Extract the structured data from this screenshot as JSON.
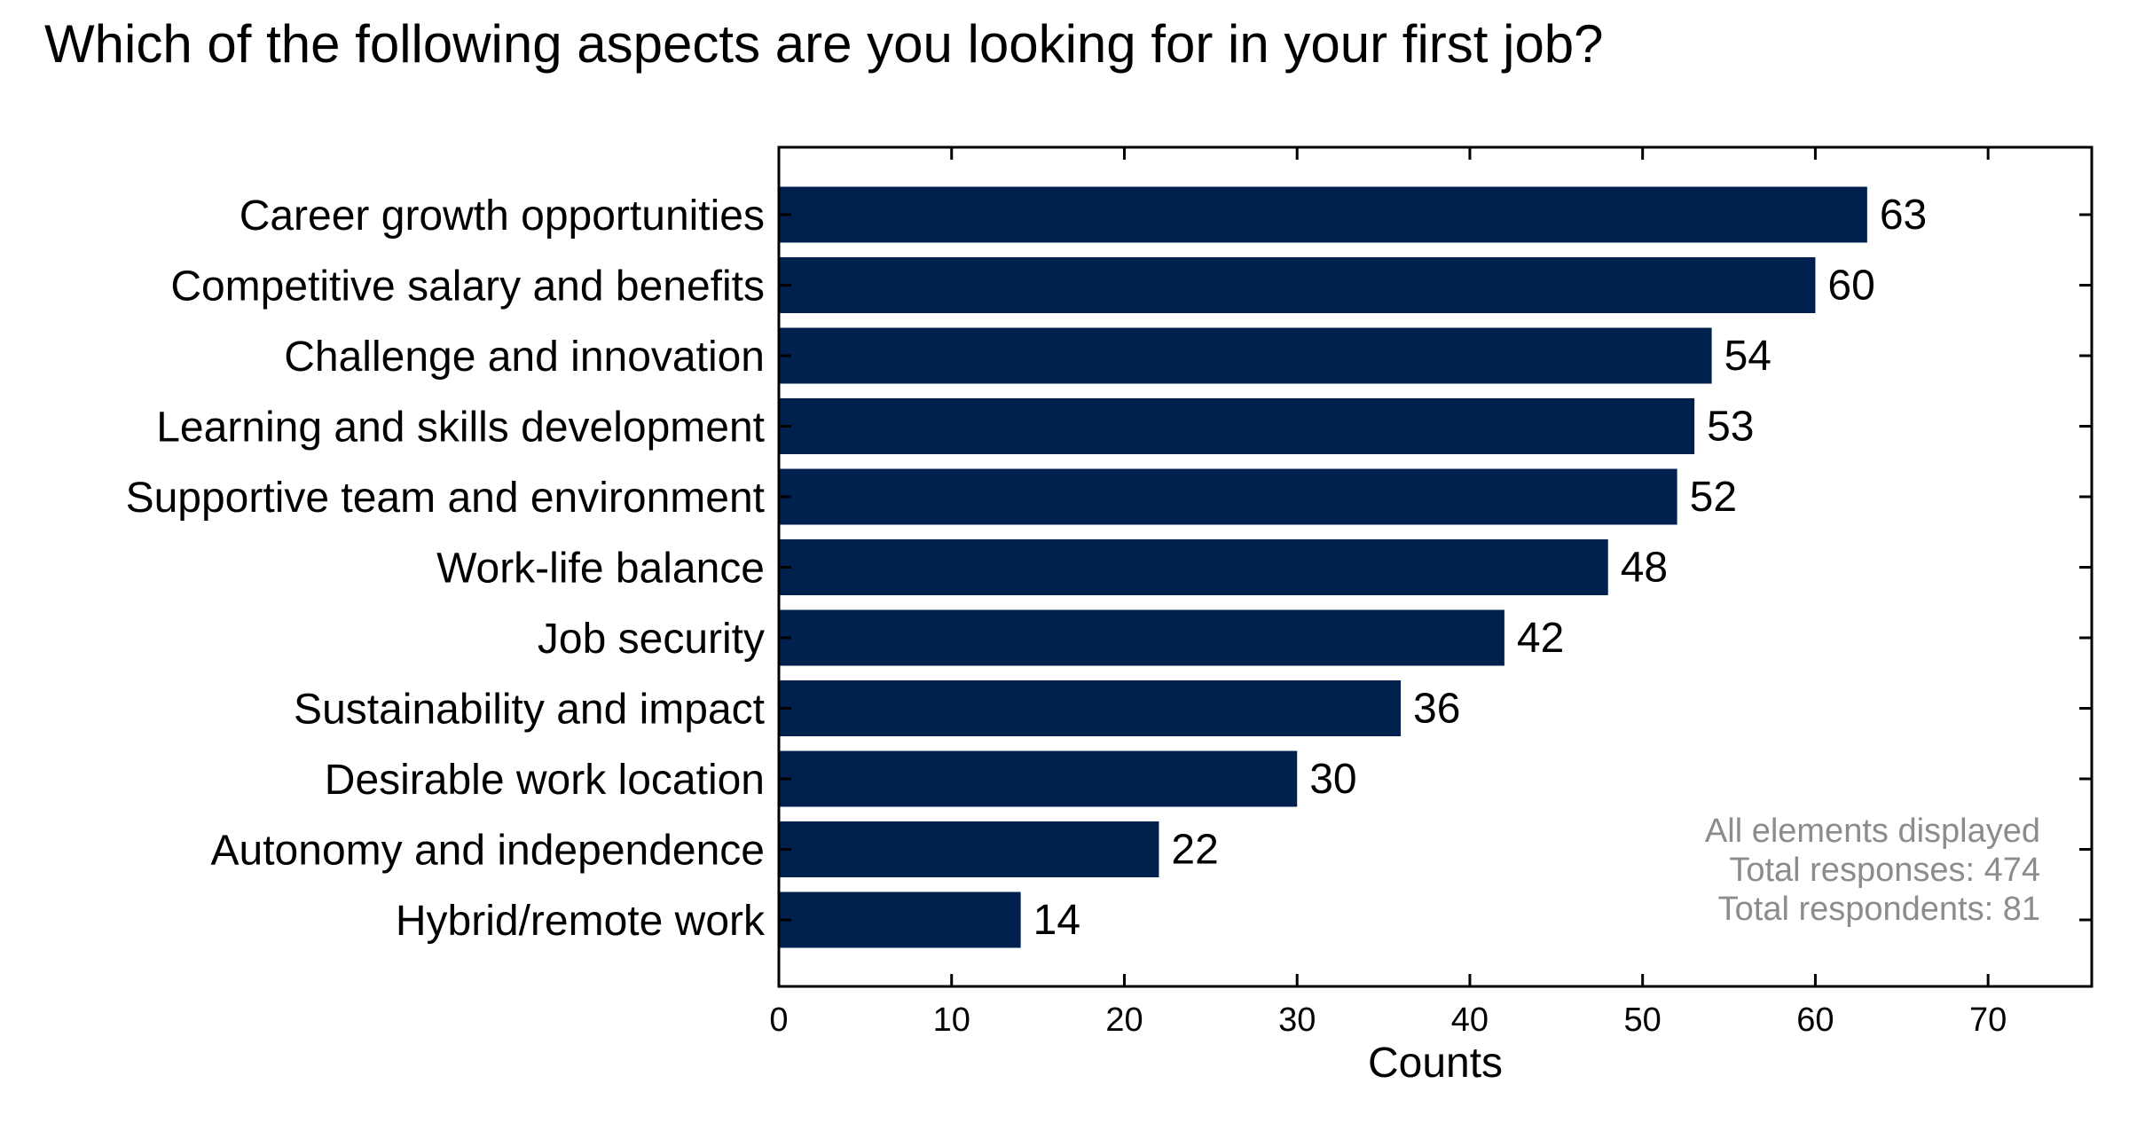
{
  "title": "Which of the following aspects are you looking for in your first job?",
  "chart_data": {
    "type": "bar",
    "orientation": "horizontal",
    "title": "Which of the following aspects are you looking for in your first job?",
    "xlabel": "Counts",
    "ylabel": "",
    "xlim": [
      0,
      76
    ],
    "xticks": [
      0,
      10,
      20,
      30,
      40,
      50,
      60,
      70
    ],
    "grid": false,
    "categories": [
      "Career growth opportunities",
      "Competitive salary and benefits",
      "Challenge and innovation",
      "Learning and skills development",
      "Supportive team and environment",
      "Work-life balance",
      "Job security",
      "Sustainability and impact",
      "Desirable work location",
      "Autonomy and independence",
      "Hybrid/remote work"
    ],
    "values": [
      63,
      60,
      54,
      53,
      52,
      48,
      42,
      36,
      30,
      22,
      14
    ],
    "bar_color": "#00214d",
    "annotation": [
      "All elements displayed",
      "Total responses: 474",
      "Total respondents: 81"
    ],
    "annotation_placement": "bottom-right",
    "annotation_color": "#8c8c8c"
  }
}
